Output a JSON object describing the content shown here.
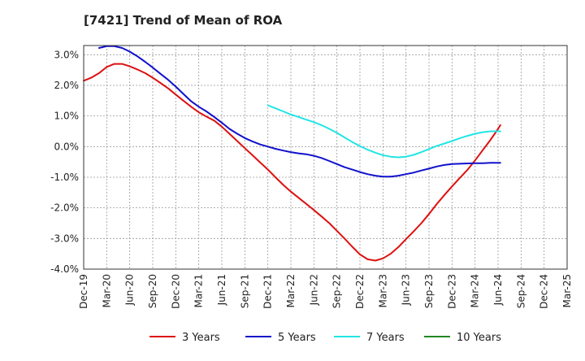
{
  "chart_data": {
    "type": "line",
    "title": "[7421]  Trend of Mean of ROA",
    "xlabel": "",
    "ylabel": "",
    "x_ticks": [
      "Dec-19",
      "Mar-20",
      "Jun-20",
      "Sep-20",
      "Dec-20",
      "Mar-21",
      "Jun-21",
      "Sep-21",
      "Dec-21",
      "Mar-22",
      "Jun-22",
      "Sep-22",
      "Dec-22",
      "Mar-23",
      "Jun-23",
      "Sep-23",
      "Dec-23",
      "Mar-24",
      "Jun-24",
      "Sep-24",
      "Dec-24",
      "Mar-25"
    ],
    "y_ticks": [
      3.0,
      2.0,
      1.0,
      0.0,
      -1.0,
      -2.0,
      -3.0,
      -4.0
    ],
    "y_tick_labels": [
      "3.0%",
      "2.0%",
      "1.0%",
      "0.0%",
      "-1.0%",
      "-2.0%",
      "-3.0%",
      "-4.0%"
    ],
    "ylim": [
      -4.0,
      3.3
    ],
    "grid": true,
    "legend_position": "bottom",
    "series": [
      {
        "name": "3 Years",
        "color": "#dd1111",
        "points": [
          [
            0,
            2.15
          ],
          [
            0.33,
            2.25
          ],
          [
            0.67,
            2.4
          ],
          [
            1,
            2.6
          ],
          [
            1.33,
            2.7
          ],
          [
            1.67,
            2.7
          ],
          [
            2,
            2.62
          ],
          [
            2.33,
            2.52
          ],
          [
            2.67,
            2.4
          ],
          [
            3,
            2.25
          ],
          [
            3.33,
            2.08
          ],
          [
            3.67,
            1.9
          ],
          [
            4,
            1.7
          ],
          [
            4.33,
            1.5
          ],
          [
            4.67,
            1.3
          ],
          [
            5,
            1.12
          ],
          [
            5.33,
            0.98
          ],
          [
            5.67,
            0.85
          ],
          [
            6,
            0.65
          ],
          [
            6.33,
            0.42
          ],
          [
            6.67,
            0.18
          ],
          [
            7,
            -0.05
          ],
          [
            7.33,
            -0.28
          ],
          [
            7.67,
            -0.52
          ],
          [
            8,
            -0.75
          ],
          [
            8.33,
            -1.0
          ],
          [
            8.67,
            -1.25
          ],
          [
            9,
            -1.47
          ],
          [
            9.33,
            -1.67
          ],
          [
            9.67,
            -1.87
          ],
          [
            10,
            -2.07
          ],
          [
            10.33,
            -2.28
          ],
          [
            10.67,
            -2.5
          ],
          [
            11,
            -2.75
          ],
          [
            11.33,
            -3.0
          ],
          [
            11.67,
            -3.27
          ],
          [
            12,
            -3.52
          ],
          [
            12.33,
            -3.68
          ],
          [
            12.67,
            -3.72
          ],
          [
            13,
            -3.65
          ],
          [
            13.33,
            -3.5
          ],
          [
            13.67,
            -3.28
          ],
          [
            14,
            -3.02
          ],
          [
            14.33,
            -2.77
          ],
          [
            14.67,
            -2.5
          ],
          [
            15,
            -2.2
          ],
          [
            15.33,
            -1.88
          ],
          [
            15.67,
            -1.58
          ],
          [
            16,
            -1.3
          ],
          [
            16.33,
            -1.03
          ],
          [
            16.67,
            -0.76
          ],
          [
            17,
            -0.45
          ],
          [
            17.33,
            -0.12
          ],
          [
            17.67,
            0.22
          ],
          [
            18,
            0.58
          ],
          [
            18.1,
            0.7
          ]
        ]
      },
      {
        "name": "5 Years",
        "color": "#1111cc",
        "points": [
          [
            0.67,
            3.22
          ],
          [
            1,
            3.28
          ],
          [
            1.33,
            3.28
          ],
          [
            1.67,
            3.22
          ],
          [
            2,
            3.1
          ],
          [
            2.33,
            2.95
          ],
          [
            2.67,
            2.77
          ],
          [
            3,
            2.58
          ],
          [
            3.33,
            2.38
          ],
          [
            3.67,
            2.18
          ],
          [
            4,
            1.96
          ],
          [
            4.33,
            1.72
          ],
          [
            4.67,
            1.48
          ],
          [
            5,
            1.3
          ],
          [
            5.33,
            1.15
          ],
          [
            5.67,
            0.97
          ],
          [
            6,
            0.78
          ],
          [
            6.33,
            0.58
          ],
          [
            6.67,
            0.42
          ],
          [
            7,
            0.28
          ],
          [
            7.33,
            0.17
          ],
          [
            7.67,
            0.07
          ],
          [
            8,
            0.0
          ],
          [
            8.33,
            -0.07
          ],
          [
            8.67,
            -0.13
          ],
          [
            9,
            -0.18
          ],
          [
            9.33,
            -0.22
          ],
          [
            9.67,
            -0.25
          ],
          [
            10,
            -0.3
          ],
          [
            10.33,
            -0.37
          ],
          [
            10.67,
            -0.47
          ],
          [
            11,
            -0.57
          ],
          [
            11.33,
            -0.67
          ],
          [
            11.67,
            -0.75
          ],
          [
            12,
            -0.83
          ],
          [
            12.33,
            -0.9
          ],
          [
            12.67,
            -0.95
          ],
          [
            13,
            -0.98
          ],
          [
            13.33,
            -0.98
          ],
          [
            13.67,
            -0.95
          ],
          [
            14,
            -0.9
          ],
          [
            14.33,
            -0.85
          ],
          [
            14.67,
            -0.78
          ],
          [
            15,
            -0.72
          ],
          [
            15.33,
            -0.65
          ],
          [
            15.67,
            -0.6
          ],
          [
            16,
            -0.57
          ],
          [
            16.33,
            -0.56
          ],
          [
            16.67,
            -0.55
          ],
          [
            17,
            -0.54
          ],
          [
            17.33,
            -0.54
          ],
          [
            17.67,
            -0.53
          ],
          [
            18,
            -0.53
          ],
          [
            18.1,
            -0.53
          ]
        ]
      },
      {
        "name": "7 Years",
        "color": "#22e5e5",
        "points": [
          [
            8,
            1.35
          ],
          [
            8.33,
            1.25
          ],
          [
            8.67,
            1.15
          ],
          [
            9,
            1.05
          ],
          [
            9.33,
            0.97
          ],
          [
            9.67,
            0.88
          ],
          [
            10,
            0.8
          ],
          [
            10.33,
            0.7
          ],
          [
            10.67,
            0.58
          ],
          [
            11,
            0.45
          ],
          [
            11.33,
            0.3
          ],
          [
            11.67,
            0.15
          ],
          [
            12,
            0.02
          ],
          [
            12.33,
            -0.1
          ],
          [
            12.67,
            -0.2
          ],
          [
            13,
            -0.28
          ],
          [
            13.33,
            -0.33
          ],
          [
            13.67,
            -0.35
          ],
          [
            14,
            -0.33
          ],
          [
            14.33,
            -0.27
          ],
          [
            14.67,
            -0.18
          ],
          [
            15,
            -0.08
          ],
          [
            15.33,
            0.02
          ],
          [
            15.67,
            0.1
          ],
          [
            16,
            0.18
          ],
          [
            16.33,
            0.27
          ],
          [
            16.67,
            0.35
          ],
          [
            17,
            0.42
          ],
          [
            17.33,
            0.47
          ],
          [
            17.67,
            0.5
          ],
          [
            18,
            0.5
          ],
          [
            18.1,
            0.5
          ]
        ]
      },
      {
        "name": "10 Years",
        "color": "#228822",
        "points": []
      }
    ]
  }
}
